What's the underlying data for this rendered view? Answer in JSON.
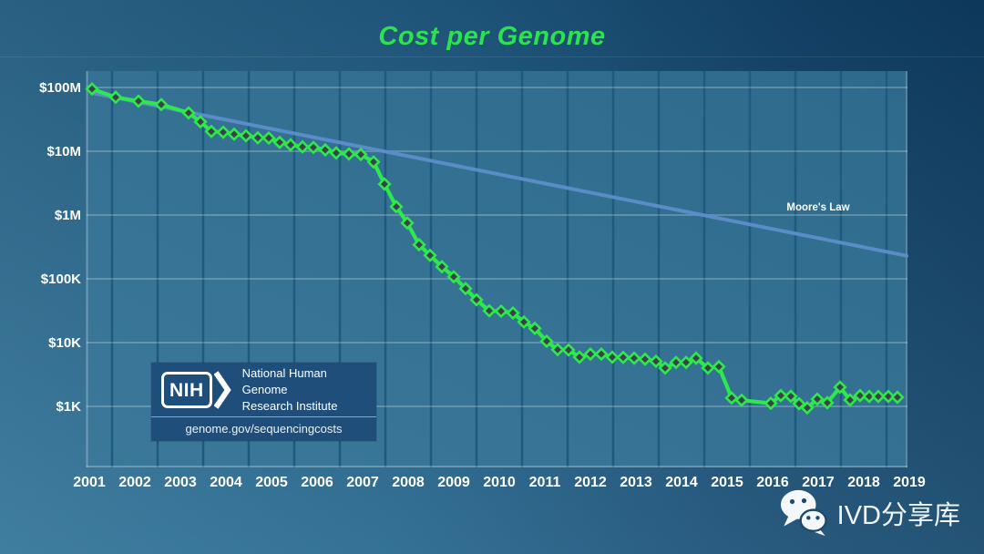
{
  "title": "Cost per Genome",
  "labels": {
    "moores_law": "Moore's Law"
  },
  "nih": {
    "logo_text": "NIH",
    "institute_line1": "National Human Genome",
    "institute_line2": "Research Institute",
    "url": "genome.gov/sequencingcosts"
  },
  "watermark": {
    "text": "IVD分享库"
  },
  "colors": {
    "title_green": "#2ce24f",
    "data_line": "#2ee84e",
    "marker_fill": "#3a4147",
    "moore_line": "#5d8ecb",
    "plot_bg_light": "#3b7899",
    "plot_bg_dark": "#2e6a8c",
    "year_gridline": "#1f5a7e",
    "decade_gridline": "rgba(255,255,255,0.22)",
    "axis_text": "#ffffff",
    "nih_box_bg": "#1f4e7b",
    "page_bg_light": "#38789a",
    "page_bg_dark": "#0e3c60"
  },
  "chart_data": {
    "type": "line",
    "title": "Cost per Genome",
    "xlabel": "",
    "ylabel": "",
    "y_scale": "log",
    "grid": "on",
    "legend_position": "none",
    "xlim": [
      2001,
      2019
    ],
    "ylim": [
      1000,
      100000000
    ],
    "x_ticks": [
      2001,
      2002,
      2003,
      2004,
      2005,
      2006,
      2007,
      2008,
      2009,
      2010,
      2011,
      2012,
      2013,
      2014,
      2015,
      2016,
      2017,
      2018,
      2019
    ],
    "y_ticks": [
      {
        "label": "$100M",
        "value": 100000000
      },
      {
        "label": "$10M",
        "value": 10000000
      },
      {
        "label": "$1M",
        "value": 1000000
      },
      {
        "label": "$100K",
        "value": 100000
      },
      {
        "label": "$10K",
        "value": 10000
      },
      {
        "label": "$1K",
        "value": 1000
      }
    ],
    "series": [
      {
        "name": "Cost per Genome",
        "marker": "diamond",
        "points": [
          [
            2001.06,
            95000000
          ],
          [
            2001.58,
            70000000
          ],
          [
            2002.08,
            61000000
          ],
          [
            2002.58,
            54000000
          ],
          [
            2003.18,
            40000000
          ],
          [
            2003.44,
            29000000
          ],
          [
            2003.68,
            20400000
          ],
          [
            2003.94,
            19900000
          ],
          [
            2004.18,
            18500000
          ],
          [
            2004.44,
            17500000
          ],
          [
            2004.7,
            16200000
          ],
          [
            2004.94,
            16100000
          ],
          [
            2005.18,
            13800000
          ],
          [
            2005.42,
            12600000
          ],
          [
            2005.68,
            11700000
          ],
          [
            2005.92,
            11500000
          ],
          [
            2006.18,
            10500000
          ],
          [
            2006.42,
            9400000
          ],
          [
            2006.7,
            9050000
          ],
          [
            2006.96,
            8900000
          ],
          [
            2007.24,
            6800000
          ],
          [
            2007.48,
            3060000
          ],
          [
            2007.74,
            1350000
          ],
          [
            2007.98,
            750000
          ],
          [
            2008.24,
            342000
          ],
          [
            2008.48,
            233000
          ],
          [
            2008.74,
            155000
          ],
          [
            2009.0,
            108000
          ],
          [
            2009.26,
            70000
          ],
          [
            2009.5,
            47000
          ],
          [
            2009.78,
            31500
          ],
          [
            2010.04,
            31100
          ],
          [
            2010.3,
            29100
          ],
          [
            2010.54,
            21000
          ],
          [
            2010.78,
            16700
          ],
          [
            2011.04,
            10500
          ],
          [
            2011.28,
            7750
          ],
          [
            2011.52,
            7650
          ],
          [
            2011.76,
            5900
          ],
          [
            2012.0,
            6600
          ],
          [
            2012.24,
            6600
          ],
          [
            2012.48,
            5900
          ],
          [
            2012.72,
            5850
          ],
          [
            2012.96,
            5700
          ],
          [
            2013.2,
            5500
          ],
          [
            2013.44,
            5100
          ],
          [
            2013.64,
            4000
          ],
          [
            2013.88,
            4900
          ],
          [
            2014.1,
            4900
          ],
          [
            2014.32,
            5700
          ],
          [
            2014.58,
            4000
          ],
          [
            2014.82,
            4200
          ],
          [
            2015.1,
            1360
          ],
          [
            2015.32,
            1250
          ],
          [
            2015.96,
            1120
          ],
          [
            2016.18,
            1480
          ],
          [
            2016.4,
            1440
          ],
          [
            2016.58,
            1100
          ],
          [
            2016.76,
            950
          ],
          [
            2016.98,
            1300
          ],
          [
            2017.2,
            1140
          ],
          [
            2017.48,
            2000
          ],
          [
            2017.7,
            1260
          ],
          [
            2017.92,
            1480
          ],
          [
            2018.12,
            1430
          ],
          [
            2018.32,
            1430
          ],
          [
            2018.54,
            1430
          ],
          [
            2018.74,
            1390
          ]
        ]
      },
      {
        "name": "Moore's Law",
        "marker": "none",
        "points": [
          [
            2001.06,
            82000000
          ],
          [
            2018.94,
            230000
          ]
        ],
        "label_pos": [
          2017.0,
          1170000
        ]
      }
    ]
  }
}
